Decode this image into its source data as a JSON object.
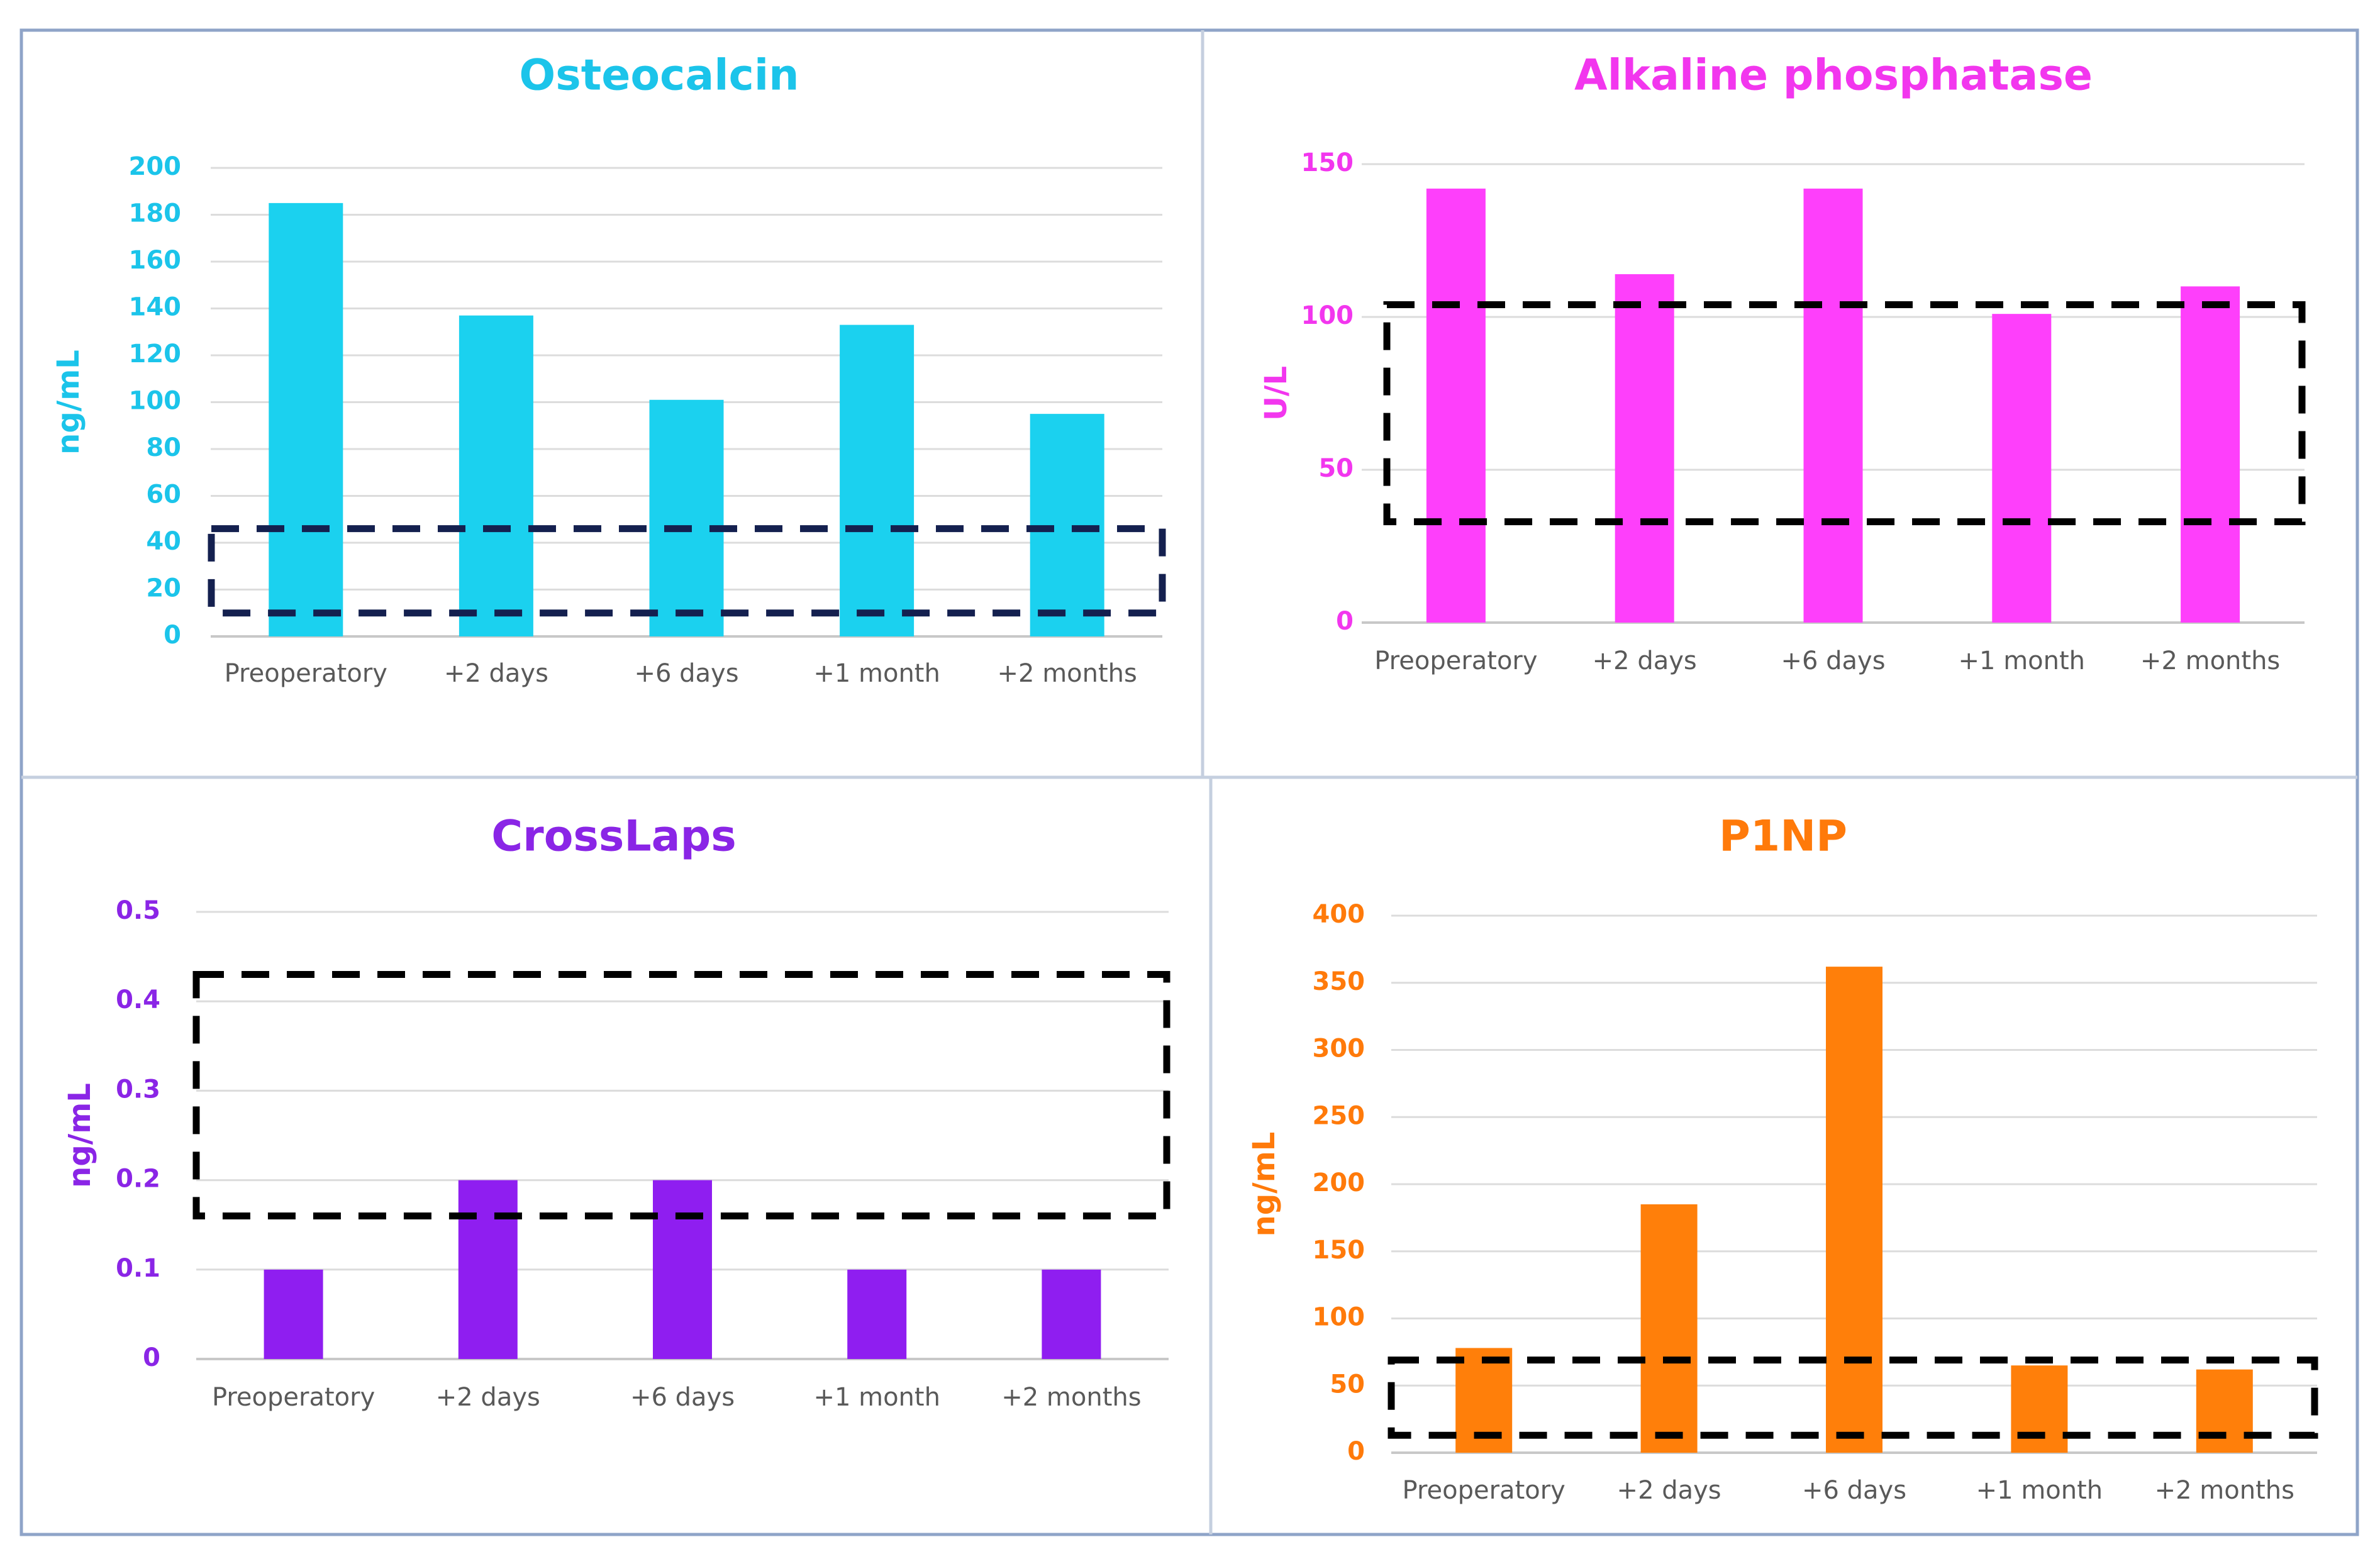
{
  "chart_data": [
    {
      "type": "bar",
      "title": "Osteocalcin",
      "ylabel": "ng/mL",
      "xlabel": "",
      "categories": [
        "Preoperatory",
        "+2 days",
        "+6 days",
        "+1 month",
        "+2 months"
      ],
      "values": [
        185,
        137,
        101,
        133,
        95
      ],
      "ylim": [
        0,
        200
      ],
      "yticks": [
        0,
        20,
        40,
        60,
        80,
        100,
        120,
        140,
        160,
        180,
        200
      ],
      "reference_range": [
        10,
        46
      ],
      "color": "#1bd1ef",
      "title_color": "#1bc4ea",
      "axis_color": "#1bc4ea",
      "range_color": "#14204f",
      "grid": true,
      "legend": "none"
    },
    {
      "type": "bar",
      "title": "Alkaline phosphatase",
      "ylabel": "U/L",
      "xlabel": "",
      "categories": [
        "Preoperatory",
        "+2 days",
        "+6 days",
        "+1 month",
        "+2 months"
      ],
      "values": [
        142,
        114,
        142,
        101,
        110
      ],
      "ylim": [
        0,
        150
      ],
      "yticks": [
        0,
        50,
        100,
        150
      ],
      "reference_range": [
        33,
        104
      ],
      "color": "#fe3ffb",
      "title_color": "#f236ee",
      "axis_color": "#f236ee",
      "range_color": "#000000",
      "grid": true,
      "legend": "none"
    },
    {
      "type": "bar",
      "title": "CrossLaps",
      "ylabel": "ng/mL",
      "xlabel": "",
      "categories": [
        "Preoperatory",
        "+2 days",
        "+6 days",
        "+1 month",
        "+2 months"
      ],
      "values": [
        0.1,
        0.2,
        0.2,
        0.1,
        0.1
      ],
      "ylim": [
        0,
        0.5
      ],
      "yticks": [
        0,
        0.1,
        0.2,
        0.3,
        0.4,
        0.5
      ],
      "reference_range": [
        0.16,
        0.43
      ],
      "color": "#8f1ef0",
      "title_color": "#8a25e6",
      "axis_color": "#8a25e6",
      "range_color": "#000000",
      "grid": true,
      "legend": "none"
    },
    {
      "type": "bar",
      "title": "P1NP",
      "ylabel": "ng/mL",
      "xlabel": "",
      "categories": [
        "Preoperatory",
        "+2 days",
        "+6 days",
        "+1 month",
        "+2 months"
      ],
      "values": [
        78,
        185,
        362,
        65,
        62
      ],
      "ylim": [
        0,
        400
      ],
      "yticks": [
        0,
        50,
        100,
        150,
        200,
        250,
        300,
        350,
        400
      ],
      "reference_range": [
        13,
        69
      ],
      "color": "#ff7f0a",
      "title_color": "#ff7a0a",
      "axis_color": "#ff7a0a",
      "range_color": "#000000",
      "grid": true,
      "legend": "none"
    }
  ]
}
